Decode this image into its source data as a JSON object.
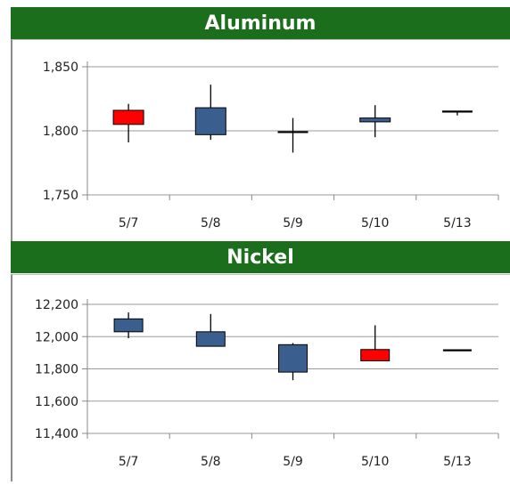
{
  "chart_data": [
    {
      "type": "candlestick",
      "title": "Aluminum",
      "categories": [
        "5/7",
        "5/8",
        "5/9",
        "5/10",
        "5/13"
      ],
      "ylim": [
        1750,
        1850
      ],
      "yticks": [
        1750,
        1800,
        1850
      ],
      "ytick_labels": [
        "1,750",
        "1,800",
        "1,850"
      ],
      "grid": true,
      "candles": [
        {
          "open": 1805,
          "close": 1816,
          "high": 1821,
          "low": 1791,
          "color": "#ff0000"
        },
        {
          "open": 1818,
          "close": 1797,
          "high": 1836,
          "low": 1793,
          "color": "#3a5f8f"
        },
        {
          "open": 1799,
          "close": 1799,
          "high": 1810,
          "low": 1783,
          "color": "#000000"
        },
        {
          "open": 1810,
          "close": 1807,
          "high": 1820,
          "low": 1795,
          "color": "#3a5f8f"
        },
        {
          "open": 1815,
          "close": 1815,
          "high": 1815,
          "low": 1812,
          "color": "#000000"
        }
      ]
    },
    {
      "type": "candlestick",
      "title": "Nickel",
      "categories": [
        "5/7",
        "5/8",
        "5/9",
        "5/10",
        "5/13"
      ],
      "ylim": [
        11400,
        12200
      ],
      "yticks": [
        11400,
        11600,
        11800,
        12000,
        12200
      ],
      "ytick_labels": [
        "11,400",
        "11,600",
        "11,800",
        "12,000",
        "12,200"
      ],
      "grid": true,
      "candles": [
        {
          "open": 12110,
          "close": 12030,
          "high": 12150,
          "low": 11990,
          "color": "#3a5f8f"
        },
        {
          "open": 12030,
          "close": 11940,
          "high": 12140,
          "low": 11940,
          "color": "#3a5f8f"
        },
        {
          "open": 11950,
          "close": 11780,
          "high": 11960,
          "low": 11730,
          "color": "#3a5f8f"
        },
        {
          "open": 11850,
          "close": 11920,
          "high": 12070,
          "low": 11850,
          "color": "#ff0000"
        },
        {
          "open": 11915,
          "close": 11915,
          "high": 11915,
          "low": 11915,
          "color": "#000000"
        }
      ]
    }
  ]
}
